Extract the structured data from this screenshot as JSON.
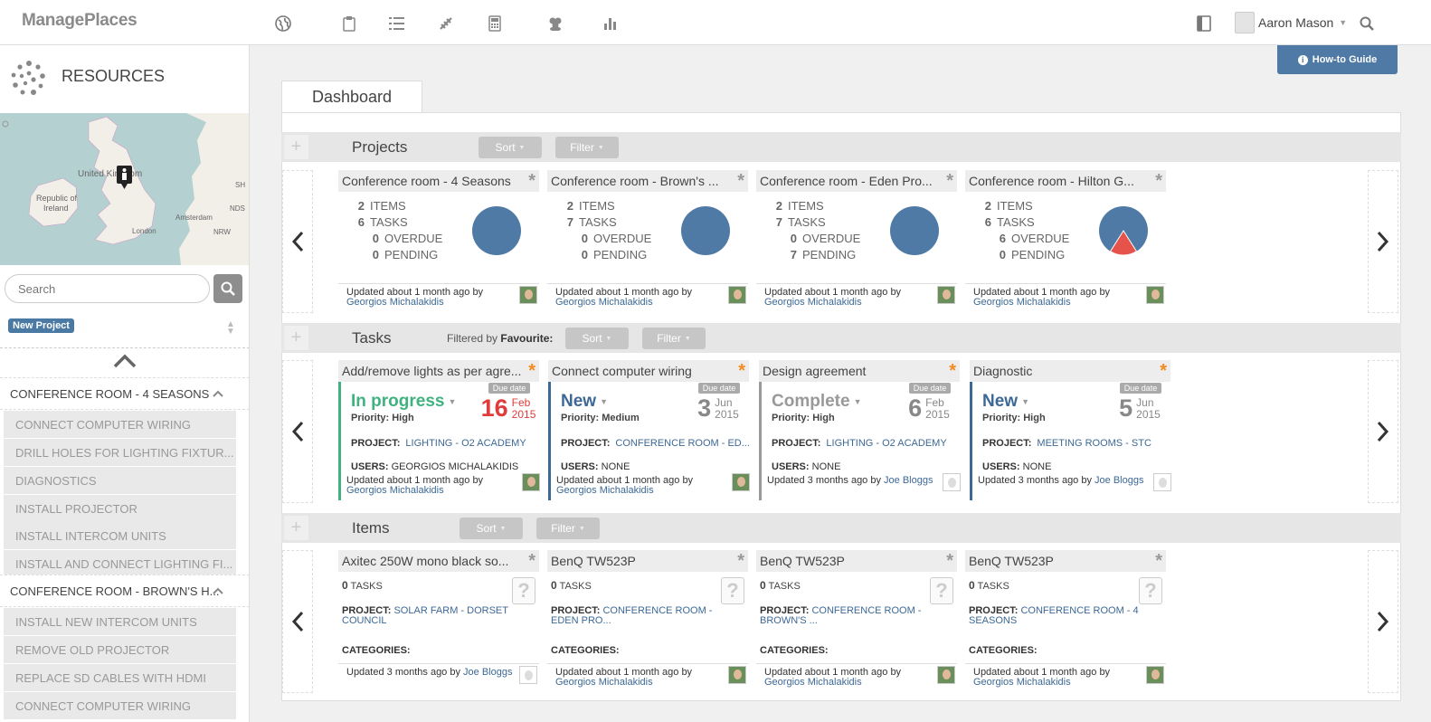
{
  "app": {
    "name": "ManagePlaces"
  },
  "nav_icons": [
    "globe-icon",
    "clipboard-icon",
    "checklist-icon",
    "ruler-icon",
    "calculator-icon",
    "people-icon",
    "bar-chart-icon"
  ],
  "user": {
    "name": "Aaron Mason"
  },
  "sidebar": {
    "title": "RESOURCES",
    "map": {
      "labels": [
        "United Kingdom",
        "Republic of Ireland",
        "London",
        "Amsterdam",
        "NDS",
        "NRW",
        "SH"
      ]
    },
    "search_placeholder": "Search",
    "new_project_label": "New Project",
    "groups": [
      {
        "label": "CONFERENCE ROOM - 4 SEASONS",
        "items": [
          "CONNECT COMPUTER WIRING",
          "DRILL HOLES FOR LIGHTING FIXTUR...",
          "DIAGNOSTICS",
          "INSTALL PROJECTOR",
          "INSTALL INTERCOM UNITS",
          "INSTALL AND CONNECT LIGHTING FI..."
        ]
      },
      {
        "label": "CONFERENCE ROOM - BROWN'S H...",
        "items": [
          "INSTALL NEW INTERCOM UNITS",
          "REMOVE OLD PROJECTOR",
          "REPLACE SD CABLES WITH HDMI",
          "CONNECT COMPUTER WIRING"
        ]
      }
    ]
  },
  "howto_label": "How-to Guide",
  "dashboard_tab": "Dashboard",
  "sort_label": "Sort",
  "filter_label": "Filter",
  "projects": {
    "title": "Projects",
    "labels": {
      "items": "ITEMS",
      "tasks": "TASKS",
      "overdue": "OVERDUE",
      "pending": "PENDING"
    },
    "cards": [
      {
        "title": "Conference room - 4 Seasons",
        "items": "2",
        "tasks": "6",
        "overdue": "0",
        "pending": "0",
        "overdue_fraction": 0,
        "updated": "Updated about 1 month ago by",
        "user": "Georgios Michalakidis"
      },
      {
        "title": "Conference room - Brown's ...",
        "items": "2",
        "tasks": "7",
        "overdue": "0",
        "pending": "0",
        "overdue_fraction": 0,
        "updated": "Updated about 1 month ago by",
        "user": "Georgios Michalakidis"
      },
      {
        "title": "Conference room - Eden Pro...",
        "items": "2",
        "tasks": "7",
        "overdue": "0",
        "pending": "7",
        "overdue_fraction": 0,
        "updated": "Updated about 1 month ago by",
        "user": "Georgios Michalakidis"
      },
      {
        "title": "Conference room - Hilton G...",
        "items": "2",
        "tasks": "6",
        "overdue": "6",
        "pending": "0",
        "overdue_fraction": 0.18,
        "updated": "Updated about 1 month ago by",
        "user": "Georgios Michalakidis"
      }
    ]
  },
  "tasks": {
    "title": "Tasks",
    "filtered_prefix": "Filtered by",
    "filtered_value": "Favourite:",
    "due_label": "Due date",
    "project_label": "PROJECT:",
    "users_label": "USERS:",
    "cards": [
      {
        "title": "Add/remove lights as per agre...",
        "status": "In progress",
        "status_color": "#3fb27f",
        "bar_color": "#3fb27f",
        "priority": "Priority: High",
        "day": "16",
        "month": "Feb",
        "year": "2015",
        "overdue": true,
        "project": "LIGHTING - O2 ACADEMY",
        "users": "GEORGIOS MICHALAKIDIS",
        "updated": "Updated about 1 month ago by",
        "user": "Georgios Michalakidis",
        "pic": true
      },
      {
        "title": "Connect computer wiring",
        "status": "New",
        "status_color": "#3c6896",
        "bar_color": "#3c6896",
        "priority": "Priority: Medium",
        "day": "3",
        "month": "Jun",
        "year": "2015",
        "overdue": false,
        "project": "CONFERENCE ROOM - ED...",
        "users": "NONE",
        "updated": "Updated about 1 month ago by",
        "user": "Georgios Michalakidis",
        "pic": true
      },
      {
        "title": "Design agreement",
        "status": "Complete",
        "status_color": "#999999",
        "bar_color": "#999999",
        "priority": "Priority: High",
        "day": "6",
        "month": "Feb",
        "year": "2015",
        "overdue": false,
        "project": "LIGHTING - O2 ACADEMY",
        "users": "NONE",
        "updated": "Updated 3 months ago by",
        "user": "Joe Bloggs",
        "pic": false
      },
      {
        "title": "Diagnostic",
        "status": "New",
        "status_color": "#3c6896",
        "bar_color": "#3c6896",
        "priority": "Priority: High",
        "day": "5",
        "month": "Jun",
        "year": "2015",
        "overdue": false,
        "project": "MEETING ROOMS - STC",
        "users": "NONE",
        "updated": "Updated 3 months ago by",
        "user": "Joe Bloggs",
        "pic": false
      }
    ]
  },
  "items": {
    "title": "Items",
    "tasks_label": "TASKS",
    "project_label": "PROJECT:",
    "categories_label": "CATEGORIES:",
    "cards": [
      {
        "title": "Axitec 250W mono black so...",
        "tasks": "0",
        "project": "SOLAR FARM - DORSET COUNCIL",
        "updated": "Updated 3 months ago by",
        "user": "Joe Bloggs",
        "pic": false
      },
      {
        "title": "BenQ TW523P",
        "tasks": "0",
        "project": "CONFERENCE ROOM - EDEN PRO...",
        "updated": "Updated about 1 month ago by",
        "user": "Georgios Michalakidis",
        "pic": true
      },
      {
        "title": "BenQ TW523P",
        "tasks": "0",
        "project": "CONFERENCE ROOM - BROWN'S ...",
        "updated": "Updated about 1 month ago by",
        "user": "Georgios Michalakidis",
        "pic": true
      },
      {
        "title": "BenQ TW523P",
        "tasks": "0",
        "project": "CONFERENCE ROOM - 4 SEASONS",
        "updated": "Updated about 1 month ago by",
        "user": "Georgios Michalakidis",
        "pic": true
      }
    ]
  },
  "colors": {
    "accent": "#4f7aa6",
    "pie": "#4f7aa6",
    "pie_overdue": "#e5534b",
    "favourite_star": "#f28a1e",
    "overdue_date": "#e03c3c"
  }
}
